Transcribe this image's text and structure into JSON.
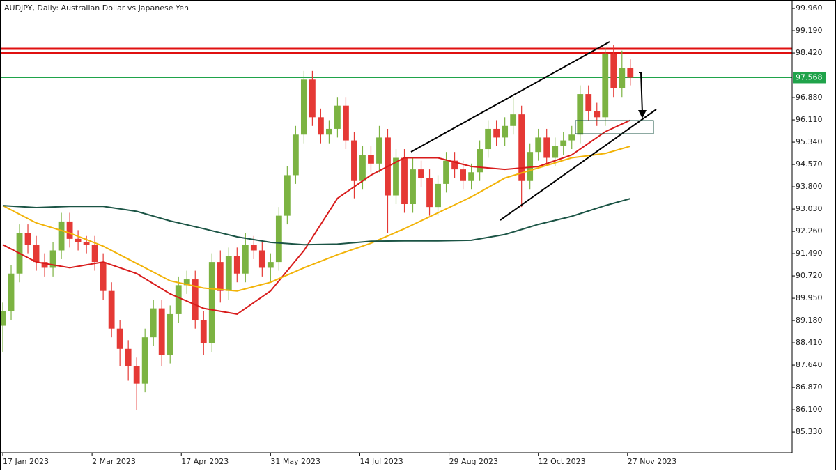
{
  "chart_data": {
    "type": "candlestick",
    "title": "AUDJPY, Daily:  Australian Dollar vs Japanese Yen",
    "up_color": "#7cb342",
    "down_color": "#e53935",
    "xlim": [
      -1,
      283
    ],
    "ylim": [
      84.61,
      100.25
    ],
    "xticks": [
      {
        "value": 0,
        "label": "17 Jan 2023"
      },
      {
        "value": 32,
        "label": "2 Mar 2023"
      },
      {
        "value": 64,
        "label": "17 Apr 2023"
      },
      {
        "value": 96,
        "label": "31 May 2023"
      },
      {
        "value": 128,
        "label": "14 Jul 2023"
      },
      {
        "value": 160,
        "label": "29 Aug 2023"
      },
      {
        "value": 192,
        "label": "12 Oct 2023"
      },
      {
        "value": 224,
        "label": "27 Nov 2023"
      }
    ],
    "yticks": [
      {
        "value": 99.96,
        "label": "99.960"
      },
      {
        "value": 99.19,
        "label": "99.190"
      },
      {
        "value": 98.42,
        "label": "98.420"
      },
      {
        "value": 96.88,
        "label": "96.880"
      },
      {
        "value": 96.11,
        "label": "96.110"
      },
      {
        "value": 95.34,
        "label": "95.340"
      },
      {
        "value": 94.57,
        "label": "94.570"
      },
      {
        "value": 93.8,
        "label": "93.800"
      },
      {
        "value": 93.03,
        "label": "93.030"
      },
      {
        "value": 92.26,
        "label": "92.260"
      },
      {
        "value": 91.49,
        "label": "91.490"
      },
      {
        "value": 90.72,
        "label": "90.720"
      },
      {
        "value": 89.95,
        "label": "89.950"
      },
      {
        "value": 89.18,
        "label": "89.180"
      },
      {
        "value": 88.41,
        "label": "88.410"
      },
      {
        "value": 87.64,
        "label": "87.640"
      },
      {
        "value": 86.87,
        "label": "86.870"
      },
      {
        "value": 86.1,
        "label": "86.100"
      },
      {
        "value": 85.33,
        "label": "85.330"
      }
    ],
    "candles": {
      "x": [
        0,
        3,
        6,
        9,
        12,
        15,
        18,
        21,
        24,
        27,
        30,
        33,
        36,
        39,
        42,
        45,
        48,
        51,
        54,
        57,
        60,
        63,
        66,
        69,
        72,
        75,
        78,
        81,
        84,
        87,
        90,
        93,
        96,
        99,
        102,
        105,
        108,
        111,
        114,
        117,
        120,
        123,
        126,
        129,
        132,
        135,
        138,
        141,
        144,
        147,
        150,
        153,
        156,
        159,
        162,
        165,
        168,
        171,
        174,
        177,
        180,
        183,
        186,
        189,
        192,
        195,
        198,
        201,
        204,
        207,
        210,
        213,
        216,
        219,
        222,
        225
      ],
      "open": [
        89.0,
        89.5,
        90.8,
        92.2,
        91.8,
        91.2,
        91.0,
        91.6,
        92.6,
        92.0,
        91.9,
        91.8,
        91.2,
        90.2,
        88.9,
        88.2,
        87.6,
        87.0,
        88.6,
        89.6,
        88.0,
        89.4,
        90.4,
        90.6,
        89.2,
        88.4,
        91.2,
        90.2,
        91.4,
        90.8,
        91.8,
        91.6,
        91.0,
        91.2,
        92.8,
        94.2,
        95.6,
        97.5,
        96.2,
        95.6,
        95.8,
        96.6,
        95.4,
        94.0,
        94.9,
        94.6,
        95.5,
        93.5,
        94.8,
        93.2,
        94.4,
        94.1,
        93.1,
        93.9,
        94.7,
        94.4,
        94.0,
        94.3,
        95.1,
        95.8,
        95.5,
        95.9,
        96.3,
        94.0,
        95.0,
        95.5,
        94.8,
        95.2,
        95.4,
        95.6,
        97.0,
        96.4,
        96.2,
        98.4,
        97.2,
        97.9
      ],
      "high": [
        89.8,
        91.1,
        92.5,
        92.5,
        92.1,
        91.5,
        91.9,
        92.9,
        92.9,
        92.3,
        92.1,
        92.1,
        91.5,
        90.5,
        89.2,
        88.5,
        87.9,
        88.9,
        89.9,
        89.9,
        89.7,
        90.7,
        90.9,
        90.9,
        89.5,
        91.5,
        91.6,
        91.7,
        91.7,
        92.2,
        92.1,
        91.9,
        91.5,
        93.1,
        94.5,
        95.9,
        97.8,
        97.8,
        96.5,
        96.1,
        96.9,
        96.9,
        95.7,
        95.2,
        95.2,
        95.9,
        95.8,
        95.1,
        95.1,
        94.8,
        94.7,
        94.4,
        94.2,
        95.0,
        95.0,
        94.7,
        94.6,
        95.4,
        96.1,
        96.1,
        96.2,
        96.9,
        96.6,
        95.3,
        95.8,
        95.8,
        95.5,
        95.7,
        95.9,
        97.3,
        97.3,
        96.7,
        98.6,
        98.7,
        98.5,
        98.2
      ],
      "low": [
        88.1,
        89.2,
        90.5,
        91.5,
        90.9,
        90.7,
        90.7,
        91.3,
        91.7,
        91.6,
        91.5,
        90.9,
        89.9,
        88.6,
        87.6,
        87.1,
        86.1,
        86.7,
        88.3,
        87.6,
        87.7,
        89.1,
        90.1,
        88.9,
        88.0,
        88.1,
        89.8,
        89.9,
        90.5,
        90.5,
        91.3,
        90.7,
        90.5,
        90.9,
        92.5,
        93.9,
        95.3,
        95.9,
        95.3,
        95.3,
        95.5,
        95.1,
        93.4,
        93.7,
        94.3,
        94.3,
        92.2,
        93.2,
        92.9,
        92.9,
        93.8,
        92.8,
        92.8,
        93.6,
        94.1,
        93.7,
        93.7,
        94.0,
        94.8,
        95.2,
        95.2,
        95.6,
        93.1,
        93.7,
        94.7,
        94.5,
        94.5,
        94.9,
        95.1,
        95.3,
        96.1,
        95.9,
        95.9,
        96.9,
        96.9,
        97.3
      ],
      "close": [
        89.5,
        90.8,
        92.2,
        91.8,
        91.2,
        91.0,
        91.6,
        92.6,
        92.0,
        91.9,
        91.8,
        91.2,
        90.2,
        88.9,
        88.2,
        87.6,
        87.0,
        88.6,
        89.6,
        88.0,
        89.4,
        90.4,
        90.6,
        89.2,
        88.4,
        91.2,
        90.2,
        91.4,
        90.8,
        91.8,
        91.6,
        91.0,
        91.2,
        92.8,
        94.2,
        95.6,
        97.5,
        96.2,
        95.6,
        95.8,
        96.6,
        95.4,
        94.0,
        94.9,
        94.6,
        95.5,
        93.5,
        94.8,
        93.2,
        94.4,
        94.1,
        93.1,
        93.9,
        94.7,
        94.4,
        94.0,
        94.3,
        95.1,
        95.8,
        95.5,
        95.9,
        96.3,
        94.0,
        95.0,
        95.5,
        94.8,
        95.2,
        95.4,
        95.6,
        97.0,
        96.4,
        96.2,
        98.4,
        97.2,
        97.9,
        97.568
      ]
    },
    "lines": [
      {
        "color": "#d81b1b",
        "x": [
          0,
          12,
          24,
          36,
          48,
          60,
          72,
          84,
          96,
          108,
          120,
          132,
          144,
          156,
          168,
          180,
          192,
          204,
          216,
          225
        ],
        "values": [
          91.8,
          91.2,
          91.0,
          91.2,
          90.8,
          90.1,
          89.6,
          89.4,
          90.2,
          91.6,
          93.4,
          94.2,
          94.8,
          94.8,
          94.5,
          94.4,
          94.5,
          94.9,
          95.7,
          96.1
        ]
      },
      {
        "color": "#f2b308",
        "x": [
          0,
          12,
          24,
          36,
          48,
          60,
          72,
          84,
          96,
          108,
          120,
          132,
          144,
          156,
          168,
          180,
          192,
          204,
          216,
          225
        ],
        "values": [
          93.15,
          92.55,
          92.2,
          91.75,
          91.15,
          90.55,
          90.3,
          90.2,
          90.5,
          91.0,
          91.45,
          91.85,
          92.35,
          92.9,
          93.45,
          94.1,
          94.45,
          94.8,
          94.95,
          95.2
        ]
      },
      {
        "color": "#1b5445",
        "x": [
          0,
          12,
          24,
          36,
          48,
          60,
          72,
          84,
          96,
          108,
          120,
          132,
          144,
          156,
          168,
          180,
          192,
          204,
          216,
          225
        ],
        "values": [
          93.15,
          93.08,
          93.12,
          93.12,
          92.95,
          92.62,
          92.35,
          92.07,
          91.88,
          91.8,
          91.82,
          91.92,
          91.93,
          91.93,
          91.95,
          92.15,
          92.5,
          92.78,
          93.15,
          93.39
        ]
      }
    ],
    "levels": [
      {
        "value": 98.565,
        "color": "#e01010"
      },
      {
        "value": 98.42,
        "color": "#e01010"
      }
    ],
    "price_line": {
      "value": 97.568,
      "color": "#1fa34a"
    }
  }
}
